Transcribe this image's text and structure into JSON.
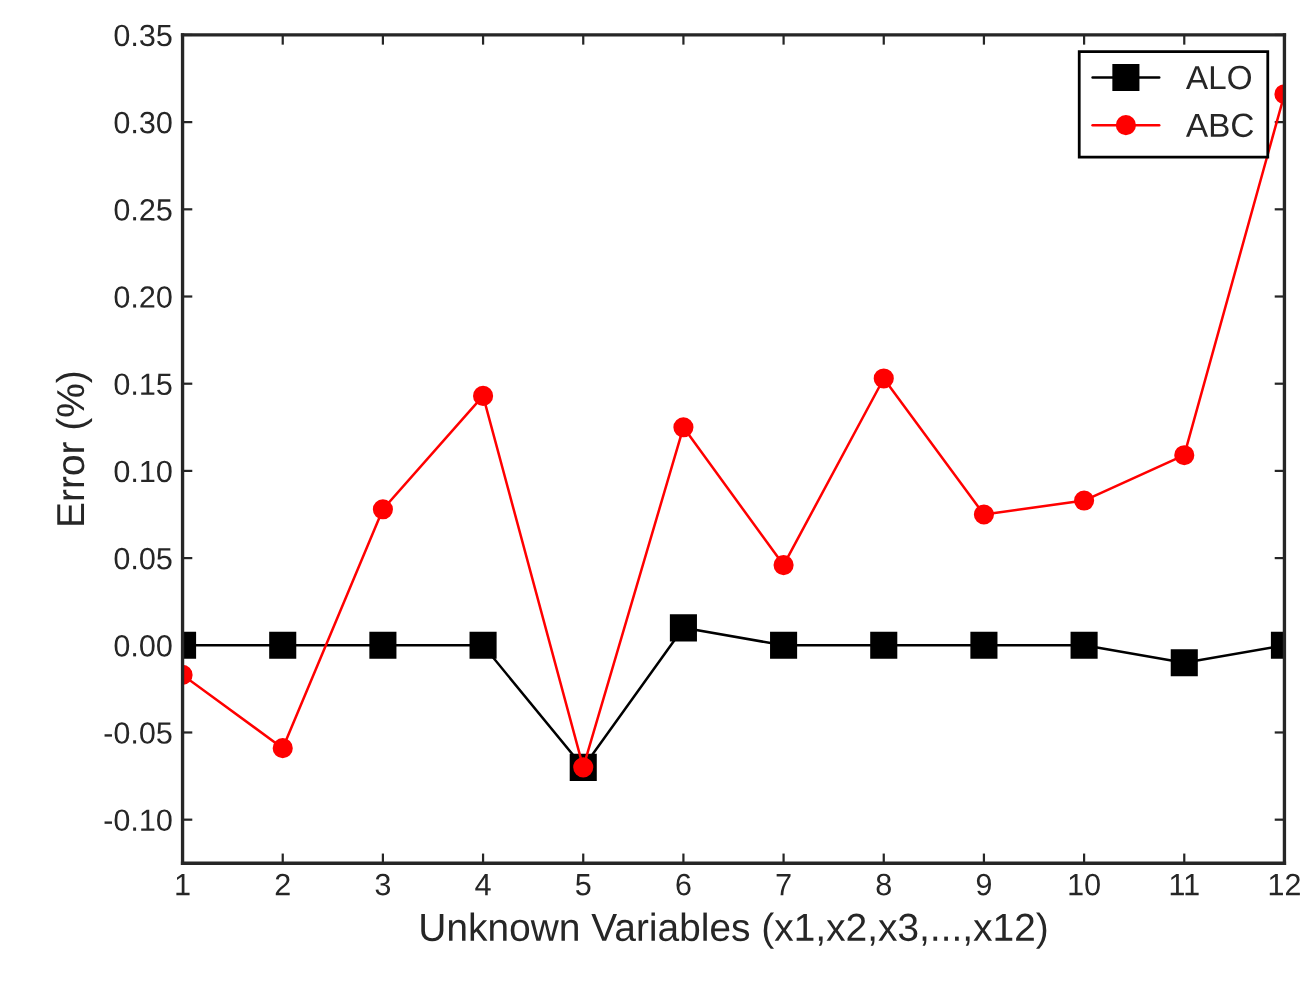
{
  "chart_data": {
    "type": "line",
    "xlabel": "Unknown Variables (x1,x2,x3,...,x12)",
    "ylabel": "Error (%)",
    "x": [
      1,
      2,
      3,
      4,
      5,
      6,
      7,
      8,
      9,
      10,
      11,
      12
    ],
    "series": [
      {
        "name": "ALO",
        "color": "#000000",
        "marker": "square",
        "values": [
          0,
          0,
          0,
          0,
          -0.07,
          0.01,
          0,
          0,
          0,
          0,
          -0.01,
          0
        ]
      },
      {
        "name": "ABC",
        "color": "#ff0000",
        "marker": "circle",
        "values": [
          -0.017,
          -0.059,
          0.078,
          0.143,
          -0.07,
          0.125,
          0.046,
          0.153,
          0.075,
          0.083,
          0.109,
          0.316
        ]
      }
    ],
    "xlim": [
      1,
      12
    ],
    "xticks": [
      1,
      2,
      3,
      4,
      5,
      6,
      7,
      8,
      9,
      10,
      11,
      12
    ],
    "ylim": [
      -0.125,
      0.35
    ],
    "yticks": [
      {
        "value": -0.1,
        "label": "-0.10"
      },
      {
        "value": -0.05,
        "label": "-0.05"
      },
      {
        "value": 0,
        "label": "0.00"
      },
      {
        "value": 0.05,
        "label": "0.05"
      },
      {
        "value": 0.1,
        "label": "0.10"
      },
      {
        "value": 0.15,
        "label": "0.15"
      },
      {
        "value": 0.2,
        "label": "0.20"
      },
      {
        "value": 0.25,
        "label": "0.25"
      },
      {
        "value": 0.3,
        "label": "0.30"
      },
      {
        "value": 0.35,
        "label": "0.35"
      }
    ],
    "legend": "top right",
    "grid": false,
    "line_style": "solid"
  }
}
